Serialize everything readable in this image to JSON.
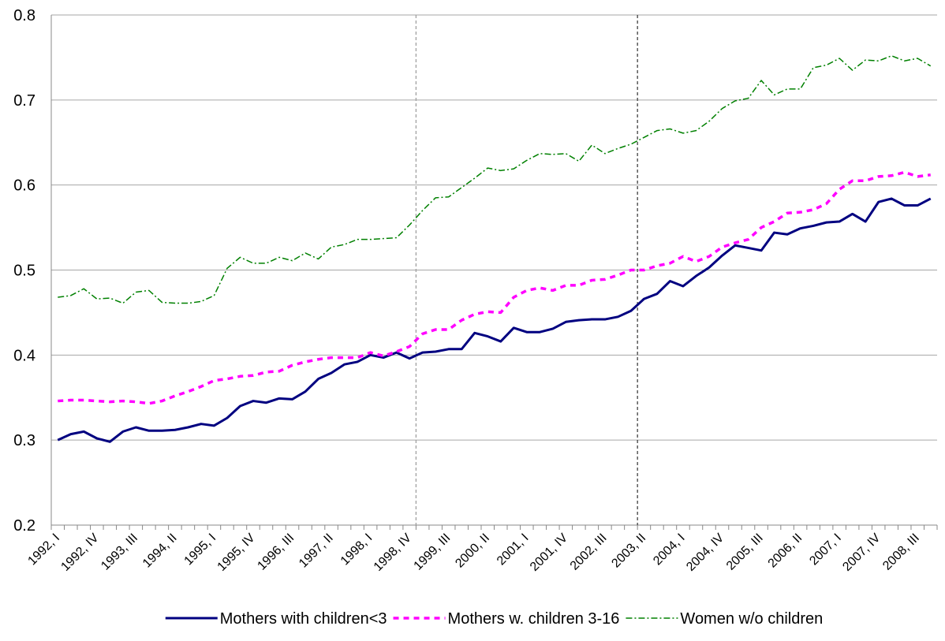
{
  "chart_data": {
    "type": "line",
    "categories": [
      "1992, I",
      null,
      null,
      "1992, IV",
      null,
      null,
      "1993, III",
      null,
      null,
      "1994, II",
      null,
      null,
      "1995, I",
      null,
      null,
      "1995, IV",
      null,
      null,
      "1996, III",
      null,
      null,
      "1997, II",
      null,
      null,
      "1998, I",
      null,
      null,
      "1998, IV",
      null,
      null,
      "1999, III",
      null,
      null,
      "2000, II",
      null,
      null,
      "2001, I",
      null,
      null,
      "2001, IV",
      null,
      null,
      "2002, III",
      null,
      null,
      "2003, II",
      null,
      null,
      "2004, I",
      null,
      null,
      "2004, IV",
      null,
      null,
      "2005, III",
      null,
      null,
      "2006, II",
      null,
      null,
      "2007, I",
      null,
      null,
      "2007, IV",
      null,
      null,
      "2008, III",
      null
    ],
    "series": [
      {
        "name": "Mothers with children<3",
        "color": "#000080",
        "dash": "solid",
        "values": [
          0.3,
          0.307,
          0.31,
          0.302,
          0.298,
          0.31,
          0.315,
          0.311,
          0.311,
          0.312,
          0.315,
          0.319,
          0.317,
          0.326,
          0.34,
          0.346,
          0.344,
          0.349,
          0.348,
          0.357,
          0.372,
          0.379,
          0.389,
          0.392,
          0.4,
          0.397,
          0.403,
          0.396,
          0.403,
          0.404,
          0.407,
          0.407,
          0.426,
          0.422,
          0.416,
          0.432,
          0.427,
          0.427,
          0.431,
          0.439,
          0.441,
          0.442,
          0.442,
          0.445,
          0.452,
          0.466,
          0.472,
          0.487,
          0.481,
          0.493,
          0.503,
          0.517,
          0.529,
          0.526,
          0.523,
          0.544,
          0.542,
          0.549,
          0.552,
          0.556,
          0.557,
          0.566,
          0.557,
          0.58,
          0.584,
          0.576,
          0.576,
          0.584
        ]
      },
      {
        "name": "Mothers w. children 3-16",
        "color": "#ff00ff",
        "dash": "dashed",
        "values": [
          0.346,
          0.347,
          0.347,
          0.346,
          0.345,
          0.346,
          0.345,
          0.343,
          0.346,
          0.352,
          0.357,
          0.363,
          0.37,
          0.372,
          0.375,
          0.376,
          0.38,
          0.381,
          0.388,
          0.392,
          0.395,
          0.397,
          0.397,
          0.397,
          0.403,
          0.399,
          0.404,
          0.41,
          0.425,
          0.43,
          0.43,
          0.441,
          0.448,
          0.451,
          0.45,
          0.468,
          0.476,
          0.479,
          0.476,
          0.482,
          0.482,
          0.488,
          0.489,
          0.494,
          0.5,
          0.5,
          0.505,
          0.508,
          0.516,
          0.51,
          0.516,
          0.527,
          0.532,
          0.536,
          0.55,
          0.557,
          0.567,
          0.568,
          0.571,
          0.578,
          0.595,
          0.605,
          0.605,
          0.61,
          0.611,
          0.615,
          0.61,
          0.612
        ]
      },
      {
        "name": "Women w/o children",
        "color": "#008000",
        "dash": "dashdot",
        "values": [
          0.468,
          0.47,
          0.478,
          0.466,
          0.467,
          0.461,
          0.474,
          0.476,
          0.462,
          0.461,
          0.461,
          0.463,
          0.47,
          0.502,
          0.515,
          0.508,
          0.508,
          0.515,
          0.511,
          0.52,
          0.513,
          0.527,
          0.53,
          0.536,
          0.536,
          0.537,
          0.538,
          0.553,
          0.57,
          0.585,
          0.586,
          0.597,
          0.608,
          0.62,
          0.617,
          0.619,
          0.629,
          0.637,
          0.636,
          0.637,
          0.628,
          0.647,
          0.637,
          0.643,
          0.648,
          0.656,
          0.664,
          0.666,
          0.661,
          0.664,
          0.675,
          0.69,
          0.699,
          0.702,
          0.723,
          0.706,
          0.713,
          0.713,
          0.738,
          0.741,
          0.749,
          0.735,
          0.747,
          0.746,
          0.752,
          0.746,
          0.749,
          0.74
        ]
      }
    ],
    "reference_lines": [
      {
        "x": 27.5,
        "color": "#a0a0a0"
      },
      {
        "x": 44.5,
        "color": "#404040"
      }
    ],
    "ylim": [
      0.2,
      0.8
    ],
    "yticks": [
      0.2,
      0.3,
      0.4,
      0.5,
      0.6,
      0.7,
      0.8
    ],
    "grid": true,
    "legend": "bottom"
  }
}
